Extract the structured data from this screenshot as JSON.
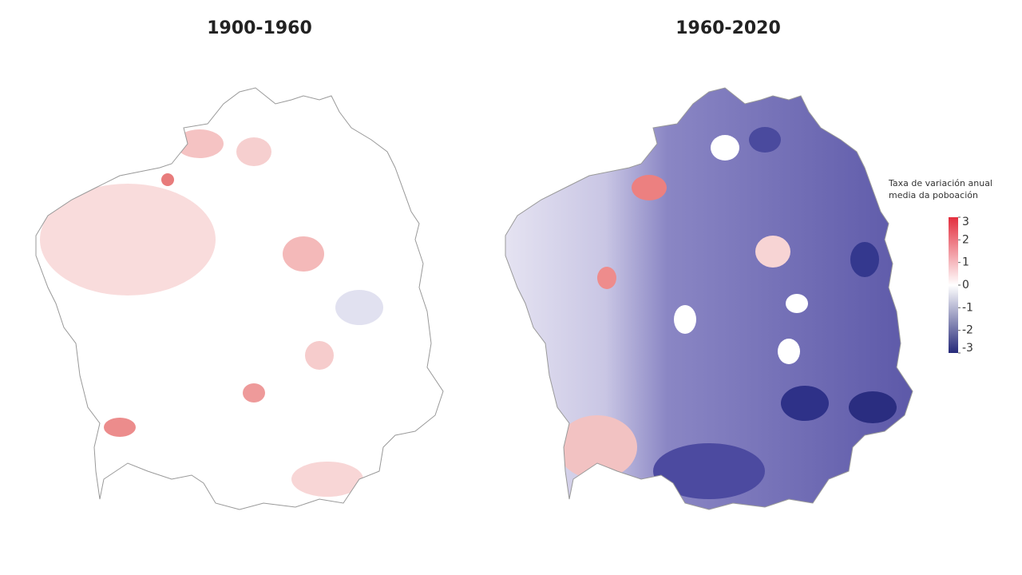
{
  "maps": [
    {
      "title": "1900-1960"
    },
    {
      "title": "1960-2020"
    }
  ],
  "legend": {
    "title": "Taxa de variación anual media da poboación",
    "range": [
      -3,
      3
    ],
    "ticks": [
      3,
      2,
      1,
      0,
      -1,
      -2,
      -3
    ],
    "colors": [
      "#262a7a",
      "#ffffff",
      "#e32f3f"
    ]
  }
}
